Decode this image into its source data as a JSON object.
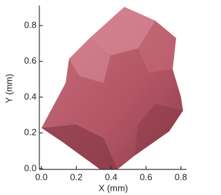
{
  "chart_data": {
    "type": "image",
    "xlabel": "X (mm)",
    "ylabel": "Y (mm)",
    "xlim": [
      0,
      0.82
    ],
    "ylim": [
      0,
      0.9
    ],
    "xticks": [
      {
        "value": 0,
        "label": "0.0"
      },
      0.2,
      0.4,
      0.6,
      0.8
    ],
    "yticks": [
      {
        "value": 0,
        "label": "0.0"
      },
      0.2,
      0.4,
      0.6,
      0.8
    ]
  }
}
